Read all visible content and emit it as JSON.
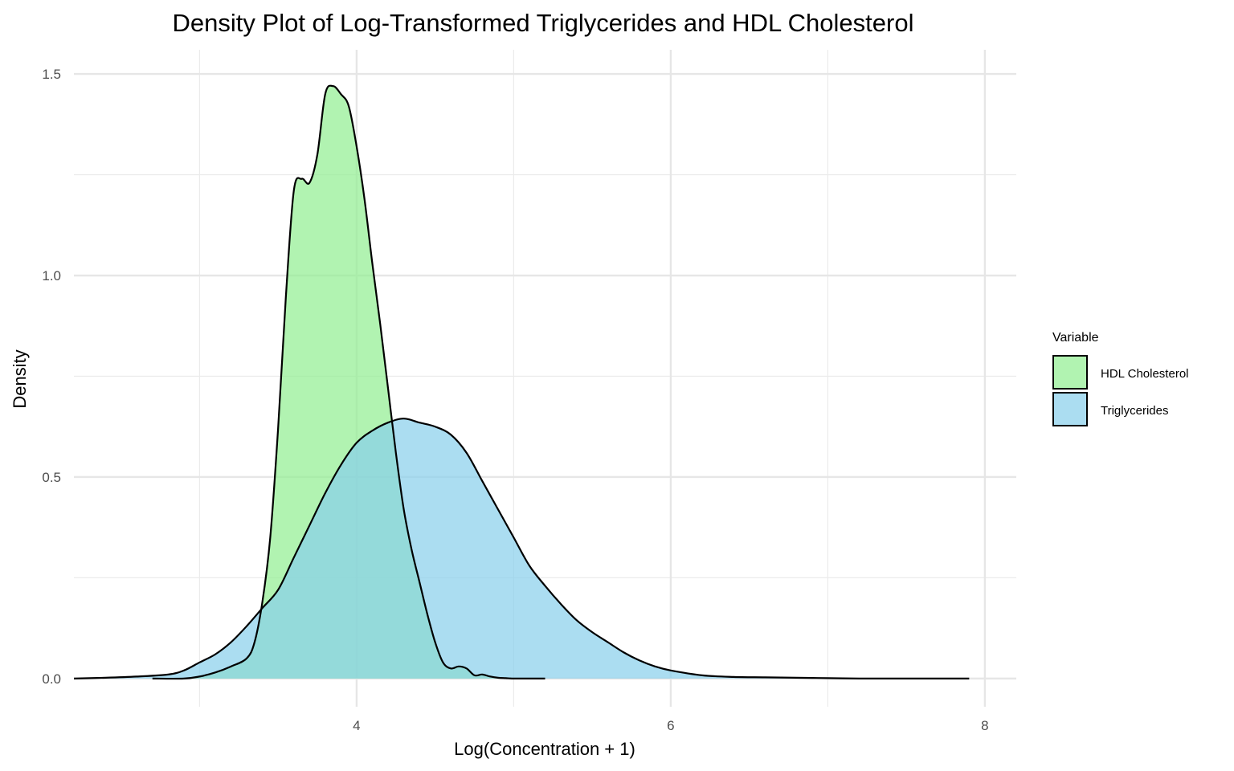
{
  "chart_data": {
    "type": "area",
    "title": "Density Plot of Log-Transformed Triglycerides and HDL Cholesterol",
    "xlabel": "Log(Concentration + 1)",
    "ylabel": "Density",
    "xlim": [
      2.2,
      8.2
    ],
    "ylim": [
      -0.07,
      1.56
    ],
    "x_ticks": [
      4,
      6,
      8
    ],
    "x_tick_labels": [
      "4",
      "6",
      "8"
    ],
    "x_minor_ticks": [
      3,
      5,
      7
    ],
    "y_ticks": [
      0.0,
      0.5,
      1.0,
      1.5
    ],
    "y_tick_labels": [
      "0.0",
      "0.5",
      "1.0",
      "1.5"
    ],
    "y_minor_ticks": [
      0.25,
      0.75,
      1.25
    ],
    "grid": true,
    "legend": {
      "title": "Variable",
      "placement": "right"
    },
    "series": [
      {
        "name": "HDL Cholesterol",
        "color": "#90EE90",
        "x": [
          2.7,
          2.9,
          3.0,
          3.1,
          3.2,
          3.3,
          3.35,
          3.4,
          3.45,
          3.5,
          3.55,
          3.6,
          3.65,
          3.7,
          3.75,
          3.8,
          3.85,
          3.9,
          3.95,
          4.0,
          4.05,
          4.1,
          4.15,
          4.2,
          4.25,
          4.3,
          4.35,
          4.4,
          4.45,
          4.5,
          4.55,
          4.6,
          4.65,
          4.7,
          4.75,
          4.8,
          4.85,
          4.9,
          4.95,
          5.0,
          5.1,
          5.2
        ],
        "y": [
          0.0,
          0.0,
          0.005,
          0.015,
          0.03,
          0.05,
          0.09,
          0.19,
          0.35,
          0.62,
          0.95,
          1.21,
          1.24,
          1.23,
          1.3,
          1.45,
          1.47,
          1.45,
          1.42,
          1.32,
          1.19,
          1.03,
          0.88,
          0.72,
          0.56,
          0.42,
          0.32,
          0.24,
          0.16,
          0.09,
          0.04,
          0.025,
          0.03,
          0.025,
          0.008,
          0.01,
          0.005,
          0.002,
          0.001,
          0.0,
          0.0,
          0.0
        ]
      },
      {
        "name": "Triglycerides",
        "color": "#87CEEB",
        "x": [
          2.2,
          2.4,
          2.6,
          2.8,
          2.9,
          3.0,
          3.1,
          3.2,
          3.3,
          3.4,
          3.5,
          3.6,
          3.7,
          3.8,
          3.9,
          4.0,
          4.1,
          4.2,
          4.3,
          4.4,
          4.5,
          4.6,
          4.7,
          4.8,
          4.9,
          5.0,
          5.1,
          5.2,
          5.3,
          5.4,
          5.5,
          5.6,
          5.7,
          5.8,
          5.9,
          6.0,
          6.2,
          6.4,
          6.6,
          6.8,
          7.0,
          7.2,
          7.4,
          7.6,
          7.8,
          7.9
        ],
        "y": [
          0.0,
          0.002,
          0.005,
          0.01,
          0.02,
          0.04,
          0.06,
          0.09,
          0.13,
          0.175,
          0.22,
          0.3,
          0.38,
          0.46,
          0.53,
          0.585,
          0.615,
          0.635,
          0.645,
          0.635,
          0.625,
          0.605,
          0.56,
          0.49,
          0.42,
          0.35,
          0.28,
          0.23,
          0.185,
          0.145,
          0.115,
          0.09,
          0.065,
          0.045,
          0.03,
          0.02,
          0.008,
          0.004,
          0.003,
          0.002,
          0.001,
          0.0,
          0.0,
          0.0,
          0.0,
          0.0
        ]
      }
    ]
  }
}
